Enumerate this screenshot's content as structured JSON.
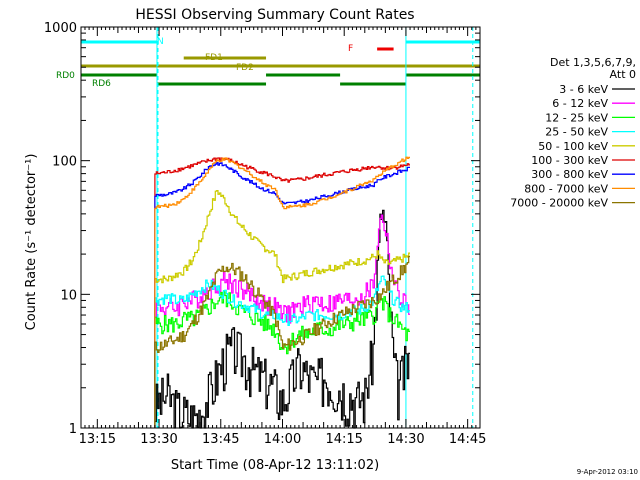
{
  "chart_data": {
    "type": "line",
    "title": "HESSI Observing Summary Count Rates",
    "xlabel": "Start Time (08-Apr-12 13:11:02)",
    "ylabel": "Count Rate (s⁻¹ detector⁻¹)",
    "yscale": "log",
    "ylim": [
      1,
      1000
    ],
    "xlim": [
      "13:11:02",
      "14:48:00"
    ],
    "x_ticks": [
      "13:15",
      "13:30",
      "13:45",
      "14:00",
      "14:15",
      "14:30",
      "14:45"
    ],
    "y_ticks": [
      "1",
      "10",
      "100",
      "1000"
    ],
    "grid": false,
    "legend_header": [
      "Det 1,3,5,6,7,9,",
      "Att 0"
    ],
    "legend_position": "right",
    "series": [
      {
        "name": "3 - 6 keV",
        "color": "#000000",
        "x": [
          "13:29",
          "13:32",
          "13:34",
          "13:36",
          "13:38",
          "13:40",
          "13:42",
          "13:44",
          "13:46",
          "13:48",
          "13:50",
          "13:52",
          "13:54",
          "13:56",
          "13:58",
          "14:00",
          "14:02",
          "14:04",
          "14:06",
          "14:08",
          "14:10",
          "14:12",
          "14:14",
          "14:16",
          "14:18",
          "14:20",
          "14:22",
          "14:23",
          "14:24",
          "14:25",
          "14:26",
          "14:27",
          "14:28",
          "14:29",
          "14:30",
          "14:31"
        ],
        "values": [
          1.5,
          1.8,
          1.4,
          1.3,
          1.2,
          1.3,
          1.8,
          2.5,
          3.5,
          4,
          3.5,
          3,
          2.5,
          2.3,
          2,
          1.6,
          2.2,
          3,
          2.5,
          2.2,
          2.5,
          2.2,
          2,
          1.8,
          1.6,
          1.8,
          4,
          15,
          45,
          30,
          8,
          3,
          2,
          2.5,
          3,
          3.5
        ]
      },
      {
        "name": "6 - 12 keV",
        "color": "#ff00ff",
        "x": [
          "13:29",
          "13:32",
          "13:34",
          "13:36",
          "13:38",
          "13:40",
          "13:42",
          "13:44",
          "13:46",
          "13:48",
          "13:50",
          "13:52",
          "13:54",
          "13:56",
          "13:58",
          "14:00",
          "14:02",
          "14:04",
          "14:06",
          "14:08",
          "14:10",
          "14:12",
          "14:14",
          "14:16",
          "14:18",
          "14:20",
          "14:22",
          "14:23",
          "14:24",
          "14:25",
          "14:26",
          "14:27",
          "14:28",
          "14:29",
          "14:30",
          "14:31"
        ],
        "values": [
          8,
          8,
          8,
          9,
          9,
          10,
          11,
          12,
          13,
          12,
          11,
          10,
          9,
          8.5,
          8,
          7,
          7.5,
          8,
          8.5,
          9,
          8.5,
          8.5,
          9,
          9,
          9.5,
          10,
          12,
          25,
          40,
          30,
          18,
          12,
          10,
          9,
          8.5,
          8
        ]
      },
      {
        "name": "12 - 25 keV",
        "color": "#00ff00",
        "x": [
          "13:29",
          "13:32",
          "13:34",
          "13:36",
          "13:38",
          "13:40",
          "13:42",
          "13:44",
          "13:46",
          "13:48",
          "13:50",
          "13:52",
          "13:54",
          "13:56",
          "13:58",
          "14:00",
          "14:02",
          "14:04",
          "14:06",
          "14:08",
          "14:10",
          "14:12",
          "14:14",
          "14:16",
          "14:18",
          "14:20",
          "14:22",
          "14:23",
          "14:24",
          "14:25",
          "14:26",
          "14:27",
          "14:28",
          "14:29",
          "14:30",
          "14:31"
        ],
        "values": [
          6,
          6,
          6,
          6.5,
          6.5,
          7,
          8,
          9,
          9.5,
          8.5,
          7.5,
          7,
          6.5,
          6,
          5.5,
          4,
          4.5,
          5,
          5,
          5.5,
          5.5,
          5.5,
          6,
          6,
          6.5,
          6.5,
          7,
          8,
          9,
          8,
          7,
          6.5,
          6,
          5.5,
          5,
          5
        ]
      },
      {
        "name": "25 - 50 keV",
        "color": "#00ffff",
        "x": [
          "13:29",
          "13:32",
          "13:34",
          "13:36",
          "13:38",
          "13:40",
          "13:42",
          "13:44",
          "13:46",
          "13:48",
          "13:50",
          "13:52",
          "13:54",
          "13:56",
          "13:58",
          "14:00",
          "14:02",
          "14:04",
          "14:06",
          "14:08",
          "14:10",
          "14:12",
          "14:14",
          "14:16",
          "14:18",
          "14:20",
          "14:22",
          "14:23",
          "14:24",
          "14:25",
          "14:26",
          "14:27",
          "14:28",
          "14:29",
          "14:30",
          "14:31"
        ],
        "values": [
          9,
          9.5,
          9,
          9,
          10,
          11,
          12,
          11,
          10,
          9,
          8.5,
          8,
          7.5,
          7,
          7,
          6.5,
          6.5,
          6.5,
          7,
          7,
          7,
          7,
          7,
          7.5,
          7.5,
          8,
          9,
          11,
          13,
          12,
          10,
          9,
          8.5,
          8,
          8,
          8
        ]
      },
      {
        "name": "50 - 100 keV",
        "color": "#cccc00",
        "x": [
          "13:29",
          "13:32",
          "13:34",
          "13:36",
          "13:38",
          "13:40",
          "13:42",
          "13:44",
          "13:46",
          "13:48",
          "13:50",
          "13:52",
          "13:54",
          "13:56",
          "13:58",
          "14:00",
          "14:02",
          "14:04",
          "14:06",
          "14:08",
          "14:10",
          "14:12",
          "14:14",
          "14:16",
          "14:18",
          "14:20",
          "14:22",
          "14:23",
          "14:24",
          "14:25",
          "14:26",
          "14:27",
          "14:28",
          "14:29",
          "14:30",
          "14:31"
        ],
        "values": [
          13,
          13,
          14,
          15,
          18,
          25,
          40,
          60,
          50,
          38,
          32,
          28,
          24,
          22,
          20,
          13,
          13.5,
          14,
          14.5,
          15,
          15.5,
          16,
          16.5,
          17,
          17.5,
          18,
          19,
          20,
          18,
          17,
          17,
          17.5,
          18,
          18.5,
          19,
          20
        ]
      },
      {
        "name": "100 - 300 keV",
        "color": "#dd0000",
        "x": [
          "13:29",
          "13:32",
          "13:34",
          "13:36",
          "13:38",
          "13:40",
          "13:42",
          "13:44",
          "13:46",
          "13:48",
          "13:50",
          "13:52",
          "13:54",
          "13:56",
          "13:58",
          "14:00",
          "14:02",
          "14:04",
          "14:06",
          "14:08",
          "14:10",
          "14:12",
          "14:14",
          "14:16",
          "14:18",
          "14:20",
          "14:22",
          "14:23",
          "14:24",
          "14:25",
          "14:26",
          "14:27",
          "14:28",
          "14:29",
          "14:30",
          "14:31"
        ],
        "values": [
          80,
          82,
          85,
          88,
          92,
          96,
          100,
          104,
          103,
          98,
          93,
          88,
          84,
          80,
          76,
          70,
          71,
          72,
          74,
          76,
          78,
          80,
          82,
          84,
          86,
          88,
          90,
          90,
          89,
          88,
          88,
          89,
          90,
          91,
          93,
          95
        ]
      },
      {
        "name": "300 - 800 keV",
        "color": "#0000ff",
        "x": [
          "13:29",
          "13:32",
          "13:34",
          "13:36",
          "13:38",
          "13:40",
          "13:42",
          "13:44",
          "13:46",
          "13:48",
          "13:50",
          "13:52",
          "13:54",
          "13:56",
          "13:58",
          "14:00",
          "14:02",
          "14:04",
          "14:06",
          "14:08",
          "14:10",
          "14:12",
          "14:14",
          "14:16",
          "14:18",
          "14:20",
          "14:22",
          "14:23",
          "14:24",
          "14:25",
          "14:26",
          "14:27",
          "14:28",
          "14:29",
          "14:30",
          "14:31"
        ],
        "values": [
          55,
          56,
          58,
          62,
          68,
          78,
          90,
          96,
          92,
          84,
          76,
          70,
          64,
          60,
          57,
          48,
          48,
          49,
          50,
          52,
          54,
          56,
          58,
          60,
          62,
          64,
          66,
          70,
          74,
          76,
          78,
          80,
          82,
          84,
          86,
          88
        ]
      },
      {
        "name": "800 - 7000 keV",
        "color": "#ff8c00",
        "x": [
          "13:29",
          "13:32",
          "13:34",
          "13:36",
          "13:38",
          "13:40",
          "13:42",
          "13:44",
          "13:46",
          "13:48",
          "13:50",
          "13:52",
          "13:54",
          "13:56",
          "13:58",
          "14:00",
          "14:02",
          "14:04",
          "14:06",
          "14:08",
          "14:10",
          "14:12",
          "14:14",
          "14:16",
          "14:18",
          "14:20",
          "14:22",
          "14:23",
          "14:24",
          "14:25",
          "14:26",
          "14:27",
          "14:28",
          "14:29",
          "14:30",
          "14:31"
        ],
        "values": [
          45,
          46,
          48,
          52,
          60,
          70,
          85,
          100,
          102,
          96,
          88,
          80,
          72,
          66,
          62,
          45,
          45,
          46,
          47,
          49,
          51,
          54,
          57,
          60,
          64,
          68,
          72,
          76,
          80,
          84,
          88,
          92,
          96,
          100,
          104,
          108
        ]
      },
      {
        "name": "7000 - 20000 keV",
        "color": "#8b7500",
        "x": [
          "13:29",
          "13:32",
          "13:34",
          "13:36",
          "13:38",
          "13:40",
          "13:42",
          "13:44",
          "13:46",
          "13:48",
          "13:50",
          "13:52",
          "13:54",
          "13:56",
          "13:58",
          "14:00",
          "14:02",
          "14:04",
          "14:06",
          "14:08",
          "14:10",
          "14:12",
          "14:14",
          "14:16",
          "14:18",
          "14:20",
          "14:22",
          "14:23",
          "14:24",
          "14:25",
          "14:26",
          "14:27",
          "14:28",
          "14:29",
          "14:30",
          "14:31"
        ],
        "values": [
          4,
          4.3,
          4.6,
          5,
          6,
          7.5,
          10,
          14,
          16,
          15.5,
          14,
          12,
          10,
          8.5,
          7,
          4,
          4.3,
          4.6,
          5,
          5.5,
          6,
          6.5,
          7,
          7.5,
          8,
          8.5,
          9,
          9.5,
          10,
          11,
          12,
          13,
          14,
          15,
          16.5,
          18
        ]
      }
    ],
    "annotations": [
      {
        "label": "N",
        "color": "#00ffff",
        "segments": [
          [
            "13:11:02",
            "13:29:30"
          ],
          [
            "14:30:00",
            "14:48:00"
          ]
        ],
        "markers": [
          "13:29:30",
          "14:46:00"
        ]
      },
      {
        "label": "F",
        "color": "#ee0000",
        "segments": [
          [
            "14:23:00",
            "14:27:00"
          ]
        ]
      },
      {
        "label": "FD1",
        "color": "#999900",
        "segments": [
          [
            "13:36:00",
            "13:56:00"
          ]
        ]
      },
      {
        "label": "FD2",
        "color": "#999900",
        "segments": [
          [
            "13:11:02",
            "14:48:00"
          ]
        ]
      },
      {
        "label": "RD0",
        "color": "#008000",
        "segments": [
          [
            "13:11:02",
            "13:29:30"
          ],
          [
            "13:56:00",
            "14:14:00"
          ],
          [
            "14:30:00",
            "14:48:00"
          ]
        ]
      },
      {
        "label": "RD6",
        "color": "#008000",
        "segments": [
          [
            "13:29:30",
            "13:56:00"
          ],
          [
            "14:14:00",
            "14:30:00"
          ]
        ]
      }
    ],
    "vertical_markers": {
      "solid": [
        "13:29:30",
        "14:30:00"
      ],
      "dashed": [
        "13:29:30",
        "14:46:00"
      ]
    }
  },
  "footer_date": "9-Apr-2012 03:10"
}
